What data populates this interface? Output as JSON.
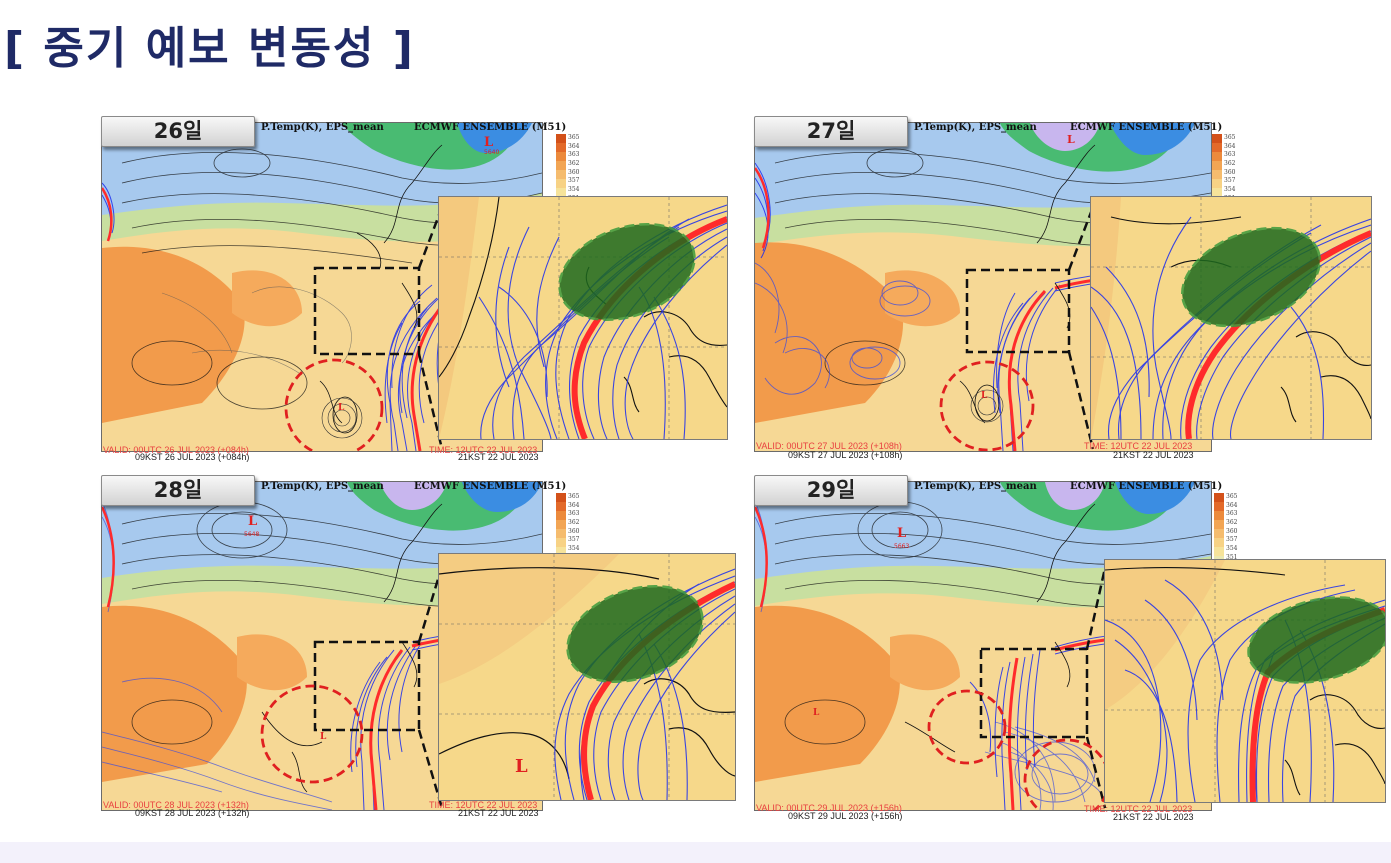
{
  "slide": {
    "title": "[ 중기 예보 변동성 ]"
  },
  "colors": {
    "title": "#1f2a66",
    "tropical_orange": "#f29a4a",
    "pale_yellow": "#f6e29a",
    "mid_green": "#c6df98",
    "blue": "#a3c6ee",
    "deep_blue": "#3a8be2",
    "green": "#41b86d",
    "purple": "#c8b6ee",
    "track_line": "#1a2cf0",
    "mean_track": "#ff2b2b",
    "highlight_fill": "#1e6a1e",
    "circle_outline": "#e02020",
    "box_outline": "#111111"
  },
  "shared": {
    "header_var": "P.Temp(K), EPS_mean",
    "header_model": "ECMWF ENSEMBLE (M51)",
    "time_label": "TIME: 12UTC 22 JUL 2023",
    "time_kst": "21KST 22 JUL 2023",
    "scale_ticks": [
      "365",
      "364",
      "363",
      "362",
      "360",
      "357",
      "354",
      "351"
    ]
  },
  "panels": [
    {
      "day": "26일",
      "valid": "VALID: 00UTC 26 JUL 2023 (+084h)",
      "kst": "09KST 26 JUL 2023 (+084h)",
      "map_low": "L",
      "map_low_value": "5640",
      "typhoon_low": "L",
      "zoom_low": ""
    },
    {
      "day": "27일",
      "valid": "VALID: 00UTC 27 JUL 2023 (+108h)",
      "kst": "09KST 27 JUL 2023 (+108h)",
      "map_low": "L",
      "map_low_value": "",
      "typhoon_low": "L",
      "zoom_low": ""
    },
    {
      "day": "28일",
      "valid": "VALID: 00UTC 28 JUL 2023 (+132h)",
      "kst": "09KST 28 JUL 2023 (+132h)",
      "map_low": "L",
      "map_low_value": "5648",
      "typhoon_low": "L",
      "zoom_low": "L"
    },
    {
      "day": "29일",
      "valid": "VALID: 00UTC 29 JUL 2023 (+156h)",
      "kst": "09KST 29 JUL 2023 (+156h)",
      "map_low": "L",
      "map_low_value": "5663",
      "typhoon_low": "L",
      "zoom_low": ""
    }
  ]
}
